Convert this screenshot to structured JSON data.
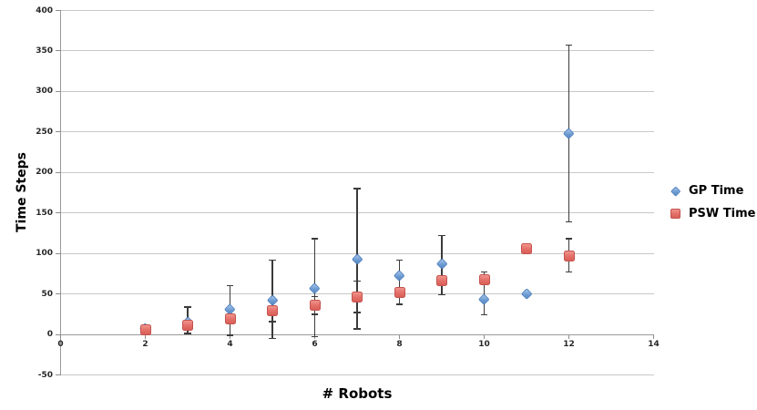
{
  "chart_data": {
    "type": "scatter",
    "title": "",
    "xlabel": "# Robots",
    "ylabel": "Time Steps",
    "xlim": [
      0,
      14
    ],
    "ylim": [
      -50,
      400
    ],
    "xticks": [
      0,
      2,
      4,
      6,
      8,
      10,
      12,
      14
    ],
    "yticks": [
      400,
      350,
      300,
      250,
      200,
      150,
      100,
      50,
      0,
      -50
    ],
    "grid": true,
    "legend_position": "right",
    "error_bars": true,
    "x": [
      2,
      3,
      4,
      5,
      6,
      7,
      8,
      9,
      10,
      11,
      12
    ],
    "series": [
      {
        "name": "GP Time",
        "marker": "diamond",
        "color": "#6d9cd4",
        "border_color": "#4f81bd",
        "values": [
          8,
          16,
          31,
          43,
          57,
          93,
          73,
          87,
          44,
          50,
          248
        ],
        "err_lo": [
          null,
          1,
          -1,
          -5,
          -3,
          7,
          37,
          49,
          24,
          null,
          139
        ],
        "err_hi": [
          null,
          34,
          60,
          92,
          118,
          180,
          92,
          122,
          77,
          null,
          357
        ]
      },
      {
        "name": "PSW Time",
        "marker": "square",
        "color": "#e4716a",
        "border_color": "#c4524d",
        "values": [
          6,
          11,
          19,
          29,
          36,
          46,
          52,
          66,
          68,
          106,
          97
        ],
        "err_lo": [
          null,
          null,
          null,
          16,
          25,
          27,
          null,
          null,
          null,
          null,
          77
        ],
        "err_hi": [
          null,
          null,
          null,
          null,
          47,
          66,
          null,
          null,
          null,
          null,
          118
        ]
      }
    ],
    "colors": {
      "grid": "#c8c8c8",
      "axis": "#999999",
      "error_bar": "#3b3b3b",
      "tick_text": "#262626",
      "background": "#ffffff"
    }
  }
}
